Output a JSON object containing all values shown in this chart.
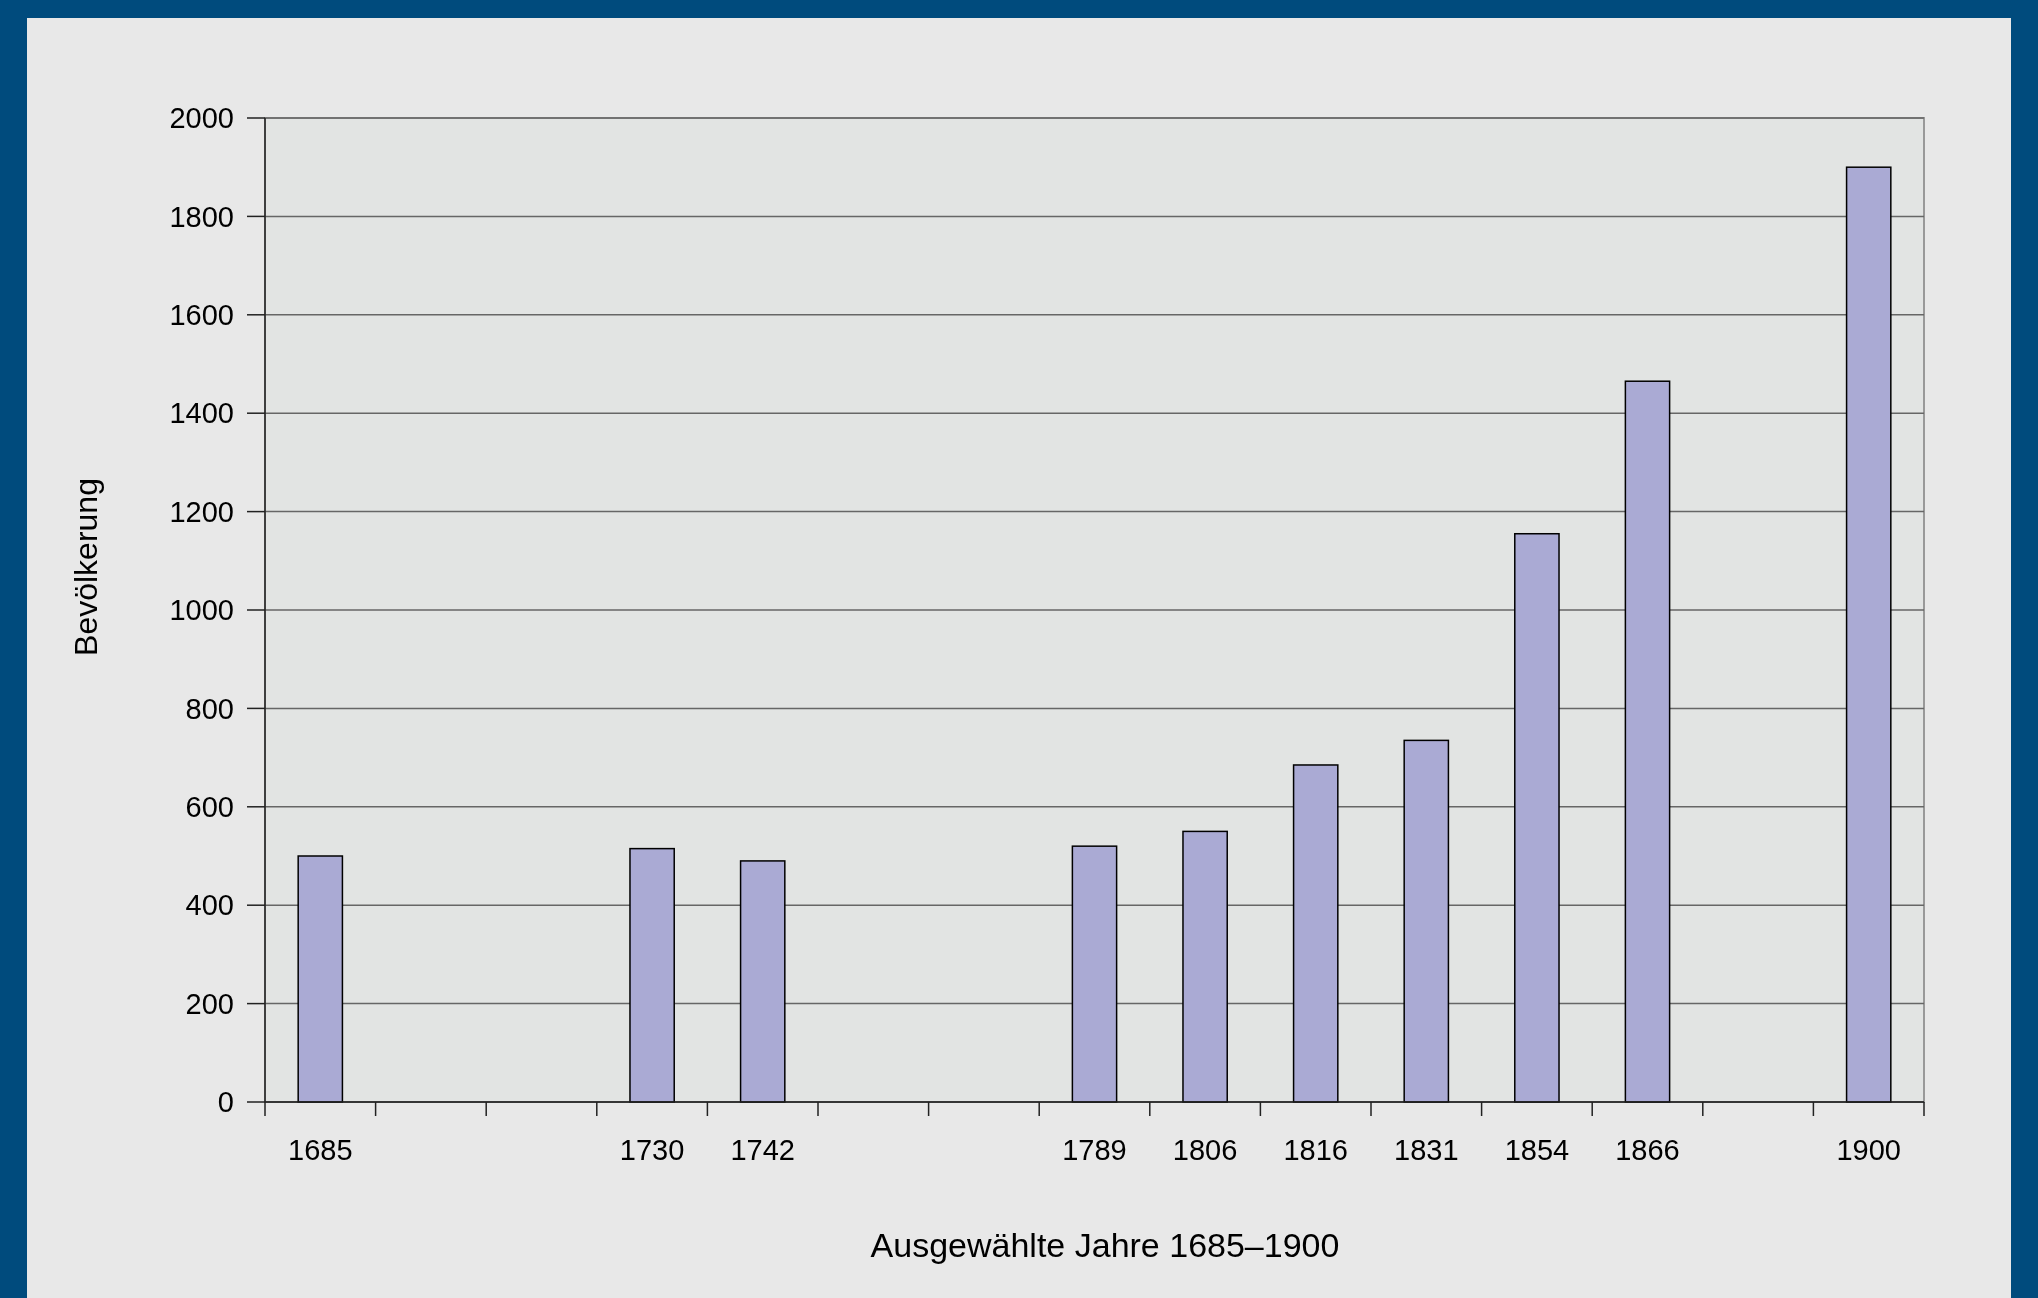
{
  "chart_data": {
    "type": "bar",
    "xlabel": "Ausgewählte Jahre 1685–1900",
    "ylabel": "Bevölkerung",
    "categories": [
      "1685",
      null,
      null,
      "1730",
      "1742",
      null,
      null,
      "1789",
      "1806",
      "1816",
      "1831",
      "1854",
      "1866",
      null,
      "1900"
    ],
    "values": [
      500,
      0,
      0,
      515,
      490,
      0,
      0,
      520,
      550,
      685,
      735,
      1155,
      1465,
      0,
      1900
    ],
    "color": "#aaaad4",
    "ylim": [
      0,
      2000
    ],
    "yticks": [
      0,
      200,
      400,
      600,
      800,
      1000,
      1200,
      1400,
      1600,
      1800,
      2000
    ],
    "grid": "y"
  }
}
